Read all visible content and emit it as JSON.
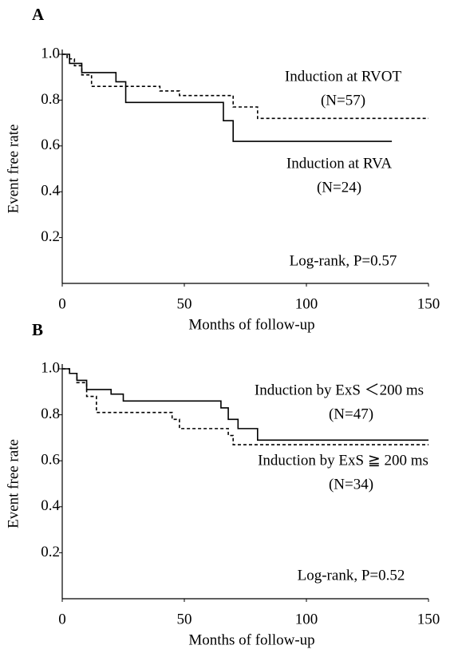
{
  "chart_data": [
    {
      "type": "line",
      "step": true,
      "panel": "A",
      "xlabel": "Months of follow-up",
      "ylabel": "Event free rate",
      "xlim": [
        0,
        150
      ],
      "xticks": [
        0,
        50,
        100,
        150
      ],
      "ylim": [
        0,
        1
      ],
      "yticks": [
        0.2,
        0.4,
        0.6,
        0.8,
        {
          "value": 1,
          "label": "1.0"
        }
      ],
      "series": [
        {
          "name": "Induction at RVOT",
          "color": "#000000",
          "dash": true,
          "x": [
            0,
            2,
            5,
            8,
            12,
            40,
            48,
            70,
            80,
            150
          ],
          "values": [
            1,
            0.98,
            0.95,
            0.91,
            0.86,
            0.84,
            0.82,
            0.77,
            0.72,
            0.72
          ]
        },
        {
          "name": "Induction at RVA",
          "color": "#000000",
          "dash": false,
          "x": [
            0,
            3,
            8,
            22,
            26,
            66,
            70,
            135
          ],
          "values": [
            1,
            0.96,
            0.92,
            0.88,
            0.79,
            0.71,
            0.62,
            0.62
          ]
        }
      ],
      "annotations": [
        "(N=57)",
        "(N=24)",
        "Log-rank, P=0.57"
      ]
    },
    {
      "type": "line",
      "step": true,
      "panel": "B",
      "xlabel": "Months of follow-up",
      "ylabel": "Event free rate",
      "xlim": [
        0,
        150
      ],
      "xticks": [
        0,
        50,
        100,
        150
      ],
      "ylim": [
        0,
        1
      ],
      "yticks": [
        0.2,
        0.4,
        0.6,
        0.8,
        {
          "value": 1,
          "label": "1.0"
        }
      ],
      "series": [
        {
          "name": "Induction by ExS ＜200 ms",
          "color": "#000000",
          "dash": false,
          "x": [
            0,
            3,
            6,
            10,
            20,
            25,
            65,
            68,
            72,
            80,
            150
          ],
          "values": [
            1,
            0.98,
            0.95,
            0.91,
            0.89,
            0.86,
            0.83,
            0.78,
            0.74,
            0.69,
            0.69
          ]
        },
        {
          "name": "Induction by ExS ≧ 200 ms",
          "color": "#000000",
          "dash": true,
          "x": [
            0,
            3,
            6,
            10,
            14,
            45,
            48,
            68,
            70,
            150
          ],
          "values": [
            1,
            0.98,
            0.94,
            0.88,
            0.81,
            0.78,
            0.74,
            0.71,
            0.67,
            0.67
          ]
        }
      ],
      "annotations": [
        "(N=47)",
        "(N=34)",
        "Log-rank, P=0.52"
      ]
    }
  ]
}
